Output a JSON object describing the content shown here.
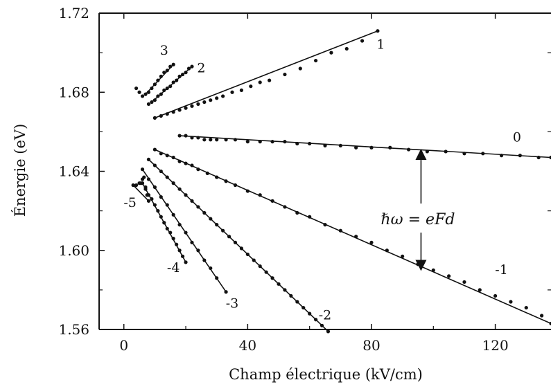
{
  "chart_data": {
    "type": "scatter",
    "xlabel": "Champ électrique (kV/cm)",
    "ylabel": "Énergie (eV)",
    "xlim": [
      -8,
      138
    ],
    "ylim": [
      1.56,
      1.72
    ],
    "xticks": [
      "0",
      "40",
      "80",
      "120"
    ],
    "yticks": [
      "1.56",
      "1.60",
      "1.64",
      "1.68",
      "1.72"
    ],
    "grid": false,
    "annotation": "ℏω = eFd",
    "series": [
      {
        "name": "1",
        "fit": [
          [
            10,
            1.667
          ],
          [
            82,
            1.711
          ]
        ],
        "x": [
          10,
          12,
          14,
          16,
          18,
          20,
          22,
          24,
          26,
          28,
          30,
          32,
          35,
          38,
          41,
          44,
          47,
          52,
          57,
          62,
          67,
          72,
          77,
          82
        ],
        "y": [
          1.667,
          1.668,
          1.669,
          1.67,
          1.671,
          1.672,
          1.673,
          1.674,
          1.675,
          1.676,
          1.677,
          1.678,
          1.68,
          1.681,
          1.683,
          1.685,
          1.686,
          1.689,
          1.692,
          1.696,
          1.7,
          1.702,
          1.706,
          1.711
        ]
      },
      {
        "name": "0",
        "fit": [
          [
            18,
            1.658
          ],
          [
            138,
            1.647
          ]
        ],
        "x": [
          18,
          20,
          22,
          24,
          26,
          28,
          30,
          33,
          36,
          40,
          44,
          48,
          52,
          56,
          60,
          65,
          70,
          75,
          80,
          86,
          92,
          98,
          104,
          110,
          116,
          122,
          128,
          134,
          138
        ],
        "y": [
          1.658,
          1.658,
          1.657,
          1.657,
          1.656,
          1.656,
          1.656,
          1.656,
          1.656,
          1.655,
          1.655,
          1.655,
          1.655,
          1.654,
          1.654,
          1.653,
          1.653,
          1.652,
          1.652,
          1.652,
          1.651,
          1.65,
          1.65,
          1.649,
          1.649,
          1.648,
          1.648,
          1.647,
          1.647
        ]
      },
      {
        "name": "-1",
        "fit": [
          [
            10,
            1.651
          ],
          [
            138,
            1.563
          ]
        ],
        "x": [
          10,
          12,
          14,
          16,
          18,
          20,
          22,
          24,
          27,
          30,
          33,
          36,
          40,
          44,
          48,
          52,
          56,
          60,
          65,
          70,
          75,
          80,
          85,
          90,
          95,
          100,
          105,
          110,
          115,
          120,
          125,
          130,
          135,
          138
        ],
        "y": [
          1.651,
          1.649,
          1.648,
          1.647,
          1.645,
          1.644,
          1.643,
          1.641,
          1.639,
          1.637,
          1.635,
          1.633,
          1.63,
          1.628,
          1.625,
          1.622,
          1.619,
          1.617,
          1.613,
          1.61,
          1.607,
          1.604,
          1.6,
          1.597,
          1.593,
          1.59,
          1.587,
          1.584,
          1.58,
          1.577,
          1.574,
          1.571,
          1.567,
          1.563
        ]
      },
      {
        "name": "-2",
        "fit": [
          [
            8,
            1.646
          ],
          [
            66,
            1.559
          ]
        ],
        "x": [
          8,
          10,
          12,
          14,
          16,
          18,
          20,
          22,
          24,
          26,
          28,
          30,
          32,
          34,
          36,
          38,
          40,
          42,
          44,
          46,
          48,
          50,
          52,
          54,
          56,
          58,
          60,
          62,
          64,
          66
        ],
        "y": [
          1.646,
          1.643,
          1.64,
          1.637,
          1.634,
          1.631,
          1.628,
          1.625,
          1.622,
          1.619,
          1.616,
          1.613,
          1.61,
          1.607,
          1.604,
          1.601,
          1.598,
          1.595,
          1.592,
          1.589,
          1.586,
          1.583,
          1.58,
          1.577,
          1.574,
          1.571,
          1.568,
          1.565,
          1.562,
          1.559
        ]
      },
      {
        "name": "-3",
        "fit": [
          [
            6,
            1.641
          ],
          [
            33,
            1.579
          ]
        ],
        "x": [
          6,
          8,
          10,
          12,
          14,
          16,
          18,
          20,
          22,
          24,
          26,
          28,
          30,
          33
        ],
        "y": [
          1.641,
          1.636,
          1.632,
          1.627,
          1.623,
          1.618,
          1.613,
          1.609,
          1.604,
          1.6,
          1.595,
          1.591,
          1.586,
          1.579
        ]
      },
      {
        "name": "-4",
        "fit": [
          [
            6,
            1.634
          ],
          [
            20,
            1.594
          ]
        ],
        "x": [
          6,
          7,
          8,
          9,
          10,
          11,
          12,
          13,
          14,
          15,
          16,
          17,
          18,
          19,
          20
        ],
        "y": [
          1.634,
          1.631,
          1.628,
          1.626,
          1.623,
          1.62,
          1.617,
          1.614,
          1.611,
          1.609,
          1.606,
          1.603,
          1.6,
          1.597,
          1.594
        ]
      },
      {
        "name": "-5",
        "fit": [
          [
            3,
            1.633
          ],
          [
            8,
            1.625
          ]
        ],
        "x": [
          3,
          4,
          5,
          5.5,
          6,
          6.5,
          7,
          7.5,
          8
        ],
        "y": [
          1.633,
          1.633,
          1.634,
          1.634,
          1.636,
          1.637,
          1.632,
          1.628,
          1.625
        ]
      },
      {
        "name": "2",
        "fit": [
          [
            9,
            1.675
          ],
          [
            22,
            1.693
          ]
        ],
        "x": [
          8,
          9,
          10,
          11,
          12,
          13,
          14,
          15,
          16,
          17,
          18,
          19,
          20,
          21,
          22
        ],
        "y": [
          1.674,
          1.675,
          1.676,
          1.678,
          1.679,
          1.681,
          1.682,
          1.683,
          1.685,
          1.686,
          1.688,
          1.689,
          1.69,
          1.692,
          1.693
        ]
      },
      {
        "name": "3",
        "fit": [
          [
            7,
            1.679
          ],
          [
            16,
            1.694
          ]
        ],
        "x": [
          4,
          5,
          6,
          7,
          8,
          9,
          10,
          11,
          12,
          13,
          14,
          15,
          16
        ],
        "y": [
          1.682,
          1.68,
          1.678,
          1.679,
          1.68,
          1.682,
          1.684,
          1.686,
          1.688,
          1.69,
          1.691,
          1.693,
          1.694
        ]
      }
    ],
    "series_label_positions": [
      {
        "name": "1",
        "x": 83,
        "y": 1.702
      },
      {
        "name": "0",
        "x": 127,
        "y": 1.655
      },
      {
        "name": "-1",
        "x": 122,
        "y": 1.588
      },
      {
        "name": "-2",
        "x": 65,
        "y": 1.565
      },
      {
        "name": "-3",
        "x": 35,
        "y": 1.571
      },
      {
        "name": "-4",
        "x": 16,
        "y": 1.589
      },
      {
        "name": "-5",
        "x": 2,
        "y": 1.622
      },
      {
        "name": "2",
        "x": 25,
        "y": 1.69
      },
      {
        "name": "3",
        "x": 13,
        "y": 1.699
      }
    ],
    "annotation_arrow": {
      "x": 96,
      "y_top": 1.65,
      "y_bottom": 1.591,
      "label_x": 95,
      "label_y": 1.616
    }
  }
}
